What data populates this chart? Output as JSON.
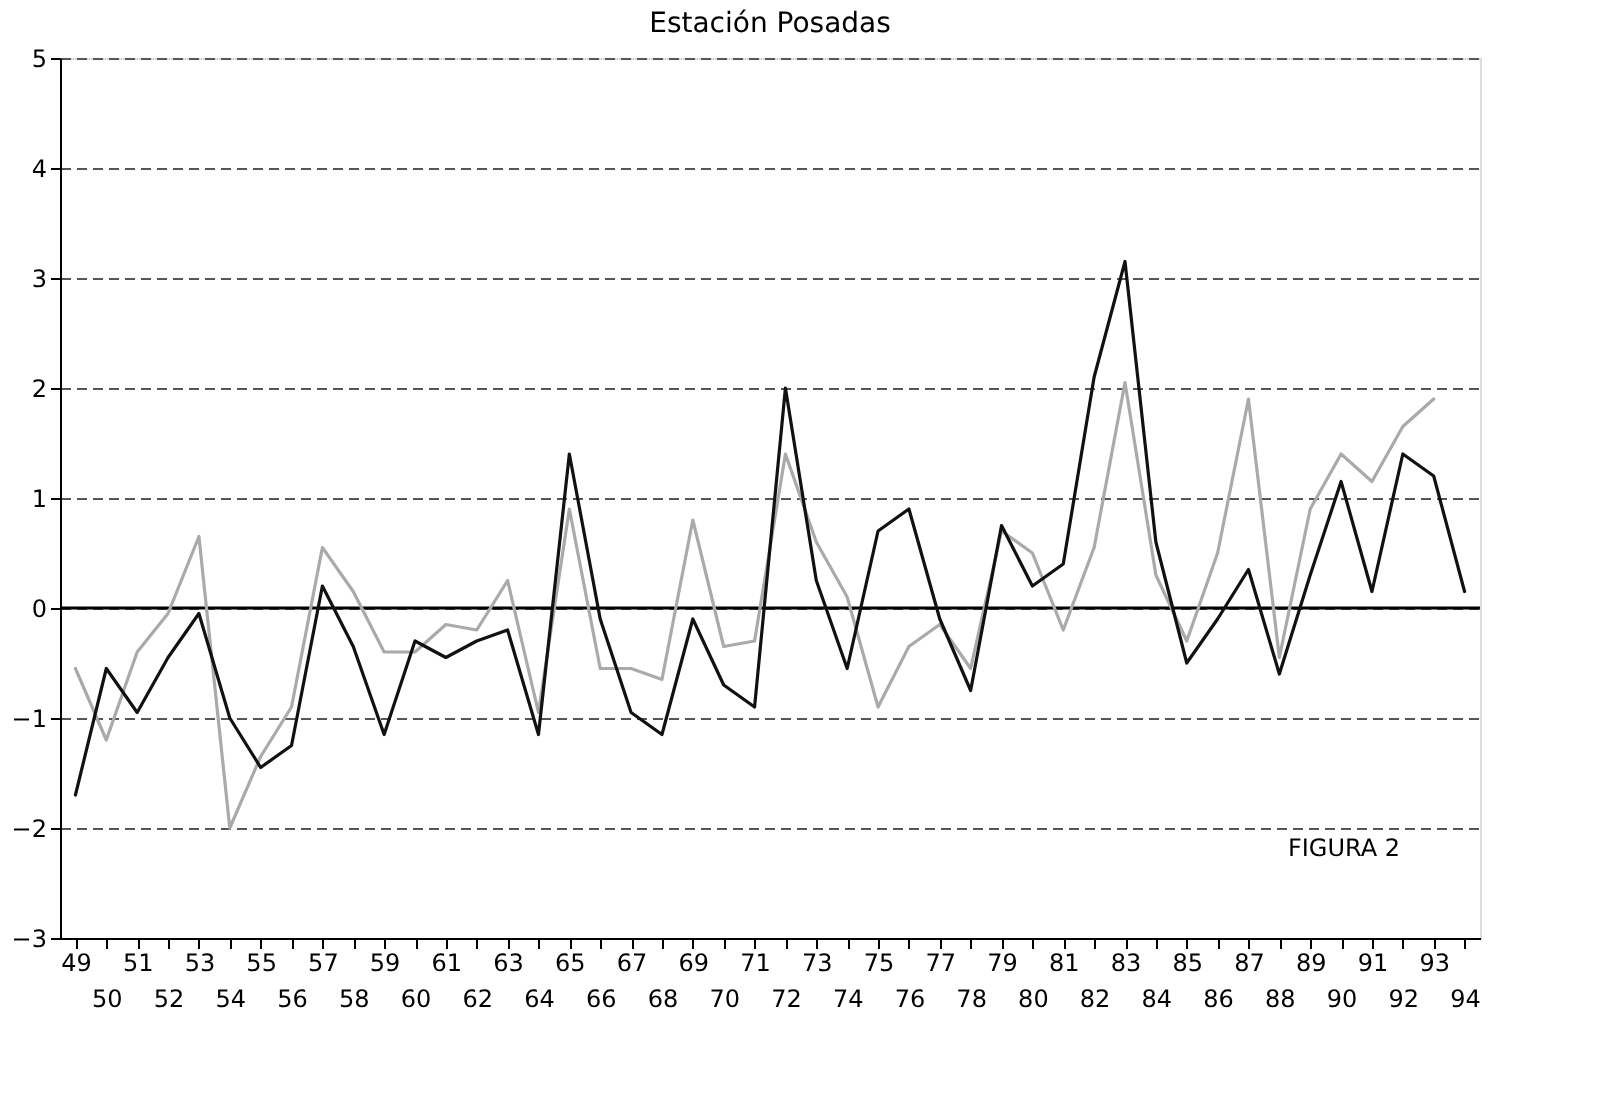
{
  "chart_data": {
    "type": "line",
    "title": "Estación Posadas",
    "categories": [
      "49",
      "50",
      "51",
      "52",
      "53",
      "54",
      "55",
      "56",
      "57",
      "58",
      "59",
      "60",
      "61",
      "62",
      "63",
      "64",
      "65",
      "66",
      "67",
      "68",
      "69",
      "70",
      "71",
      "72",
      "73",
      "74",
      "75",
      "76",
      "77",
      "78",
      "79",
      "80",
      "81",
      "82",
      "83",
      "84",
      "85",
      "86",
      "87",
      "88",
      "89",
      "90",
      "91",
      "92",
      "93",
      "94"
    ],
    "series": [
      {
        "color": "#aaaaaa",
        "values": [
          -0.55,
          -1.2,
          -0.4,
          -0.05,
          0.65,
          -2.0,
          -1.35,
          -0.9,
          0.55,
          0.15,
          -0.4,
          -0.4,
          -0.15,
          -0.2,
          0.25,
          -0.95,
          0.9,
          -0.55,
          -0.55,
          -0.65,
          0.8,
          -0.35,
          -0.3,
          1.4,
          0.6,
          0.1,
          -0.9,
          -0.35,
          -0.15,
          -0.55,
          0.7,
          0.5,
          -0.2,
          0.55,
          2.05,
          0.3,
          -0.3,
          0.5,
          1.9,
          -0.45,
          0.9,
          1.4,
          1.15,
          1.65,
          1.9,
          null
        ]
      },
      {
        "color": "#111111",
        "values": [
          -1.7,
          -0.55,
          -0.95,
          -0.45,
          -0.05,
          -1.0,
          -1.45,
          -1.25,
          0.2,
          -0.35,
          -1.15,
          -0.3,
          -0.45,
          -0.3,
          -0.2,
          -1.15,
          1.4,
          -0.1,
          -0.95,
          -1.15,
          -0.1,
          -0.7,
          -0.9,
          2.0,
          0.25,
          -0.55,
          0.7,
          0.9,
          -0.1,
          -0.75,
          0.75,
          0.2,
          0.4,
          2.1,
          3.15,
          0.6,
          -0.5,
          -0.1,
          0.35,
          -0.6,
          0.3,
          1.15,
          0.15,
          1.4,
          1.2,
          0.15
        ]
      }
    ],
    "ylim": [
      -3,
      5
    ],
    "yticks": [
      -3,
      -2,
      -1,
      0,
      1,
      2,
      3,
      4,
      5
    ],
    "grid": "y",
    "legend": false,
    "marker": "none",
    "line_style": "solid",
    "ref_lines": [
      {
        "axis": "y",
        "value": 0,
        "color": "#000000",
        "line_style": "solid"
      }
    ],
    "annotations": [
      "FIGURA 2"
    ]
  }
}
